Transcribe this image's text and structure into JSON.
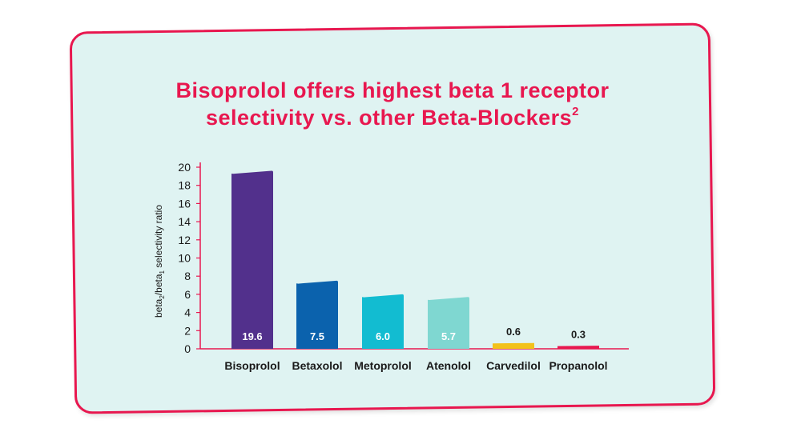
{
  "title": {
    "line1": "Bisoprolol offers highest beta 1 receptor",
    "line2": "selectivity vs. other Beta-Blockers",
    "superscript": "2"
  },
  "chart_data": {
    "type": "bar",
    "ylabel": "beta2/beta1 selectivity ratio",
    "ylim": [
      0,
      20
    ],
    "yticks": [
      0,
      2,
      4,
      6,
      8,
      10,
      12,
      14,
      16,
      18,
      20
    ],
    "categories": [
      "Bisoprolol",
      "Betaxolol",
      "Metoprolol",
      "Atenolol",
      "Carvedilol",
      "Propanolol"
    ],
    "values": [
      19.6,
      7.5,
      6.0,
      5.7,
      0.6,
      0.3
    ],
    "value_labels": [
      "19.6",
      "7.5",
      "6.0",
      "5.7",
      "0.6",
      "0.3"
    ],
    "colors": [
      "#52308c",
      "#0b62ad",
      "#12bcd1",
      "#7fd7d1",
      "#f2c21b",
      "#e8174f"
    ],
    "label_colors": [
      "#ffffff",
      "#ffffff",
      "#ffffff",
      "#ffffff",
      "#1a1a1a",
      "#1a1a1a"
    ],
    "axis_color": "#e8174f",
    "grid": false
  }
}
